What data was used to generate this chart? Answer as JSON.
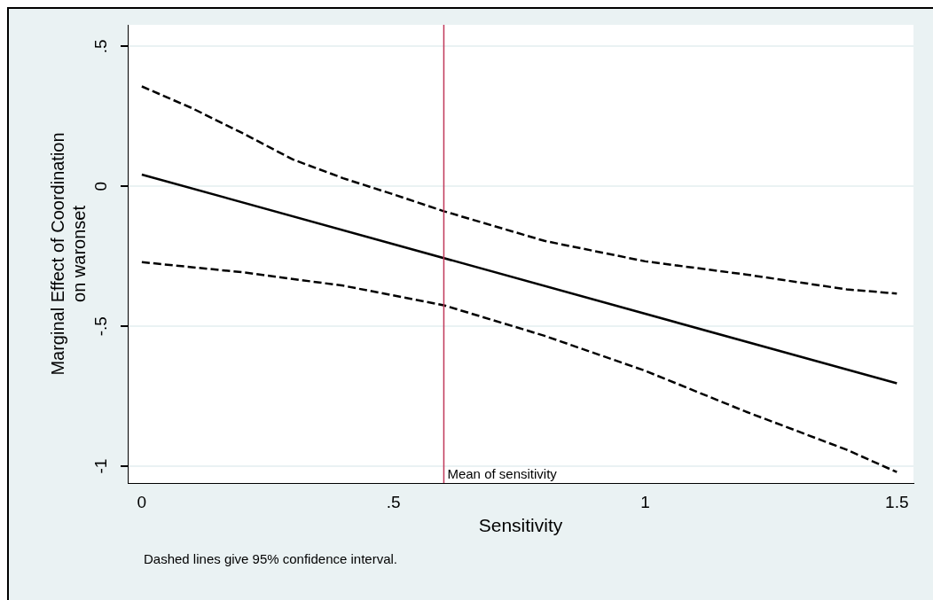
{
  "chart_data": {
    "type": "line",
    "xlabel": "Sensitivity",
    "ylabel": "Marginal Effect of Coordination\non waronset",
    "annotations": [
      "Dashed lines give 95% confidence interval."
    ],
    "xlim": [
      -0.028,
      1.533
    ],
    "xticks": [
      0,
      {
        "value": 0.5,
        "label": ".5"
      },
      1,
      1.5
    ],
    "ylim": [
      -1.06,
      0.577
    ],
    "yticks": [
      {
        "value": 0.5,
        "label": ".5"
      },
      0,
      {
        "value": -0.5,
        "label": "-.5"
      },
      -1
    ],
    "grid": "y",
    "legend": false,
    "marker": "none",
    "ref_lines": [
      {
        "axis": "x",
        "value": 0.6,
        "label": "Mean of sensitivity",
        "color": "#c0395a"
      }
    ],
    "series": [
      {
        "color": "#000000",
        "line_style": "solid",
        "x": [
          0,
          1.5
        ],
        "values": [
          0.042,
          -0.704
        ]
      },
      {
        "color": "#000000",
        "line_style": "dashed",
        "x": [
          0,
          0.1,
          0.2,
          0.3,
          0.4,
          0.5,
          0.6,
          0.8,
          1.0,
          1.2,
          1.4,
          1.5
        ],
        "values": [
          0.357,
          0.279,
          0.19,
          0.096,
          0.029,
          -0.029,
          -0.089,
          -0.195,
          -0.268,
          -0.315,
          -0.368,
          -0.383
        ]
      },
      {
        "color": "#000000",
        "line_style": "dashed",
        "x": [
          0,
          0.2,
          0.4,
          0.6,
          0.8,
          1.0,
          1.2,
          1.4,
          1.5
        ],
        "values": [
          -0.271,
          -0.307,
          -0.355,
          -0.425,
          -0.534,
          -0.659,
          -0.805,
          -0.941,
          -1.021
        ]
      }
    ]
  }
}
